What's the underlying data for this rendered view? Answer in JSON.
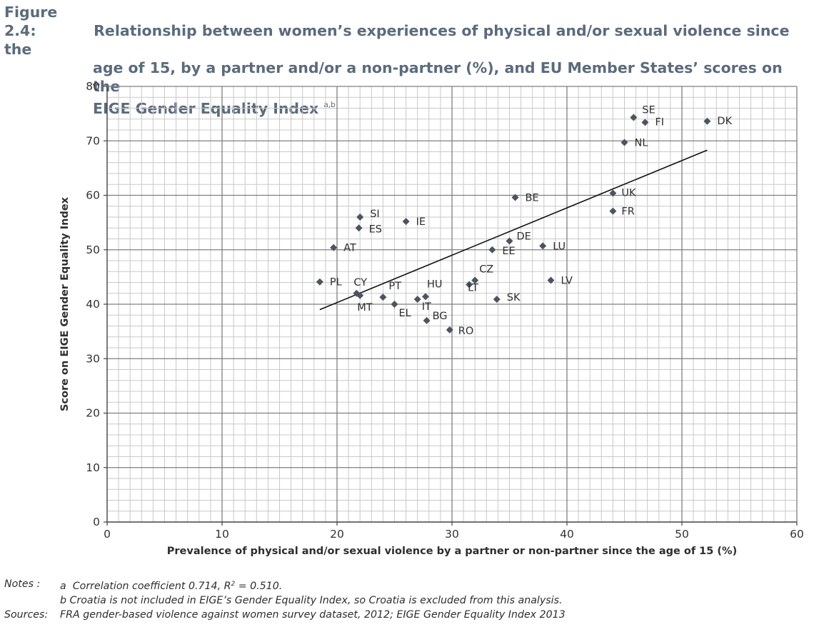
{
  "figure": {
    "label": "Figure 2.4:",
    "title_lines": [
      "Relationship between women’s experiences of physical and/or sexual violence since the",
      "age of 15, by a partner and/or a non-partner (%), and EU Member States’ scores on the",
      "EIGE Gender Equality Index"
    ],
    "title_superscript": "a,b"
  },
  "chart_data": {
    "type": "scatter",
    "title": "",
    "xlabel": "Prevalence of physical and/or sexual violence by a partner or non-partner since the age of 15 (%)",
    "ylabel": "Score on EIGE Gender Equality Index",
    "xlim": [
      0,
      60
    ],
    "ylim": [
      0,
      80
    ],
    "x_ticks": [
      0,
      10,
      20,
      30,
      40,
      50,
      60
    ],
    "y_ticks": [
      0,
      10,
      20,
      30,
      40,
      50,
      60,
      70,
      80
    ],
    "minor_grid": true,
    "major_grid": true,
    "marker_color": "#4a5561",
    "points": [
      {
        "label": "SE",
        "x": 45.8,
        "y": 74.3
      },
      {
        "label": "FI",
        "x": 46.8,
        "y": 73.4
      },
      {
        "label": "DK",
        "x": 52.2,
        "y": 73.6
      },
      {
        "label": "NL",
        "x": 45.0,
        "y": 69.7
      },
      {
        "label": "UK",
        "x": 44.0,
        "y": 60.4
      },
      {
        "label": "FR",
        "x": 44.0,
        "y": 57.1
      },
      {
        "label": "BE",
        "x": 35.5,
        "y": 59.6
      },
      {
        "label": "LU",
        "x": 37.9,
        "y": 50.7
      },
      {
        "label": "DE",
        "x": 35.0,
        "y": 51.6
      },
      {
        "label": "EE",
        "x": 33.5,
        "y": 50.0
      },
      {
        "label": "LV",
        "x": 38.6,
        "y": 44.4
      },
      {
        "label": "SK",
        "x": 33.9,
        "y": 40.9
      },
      {
        "label": "CZ",
        "x": 32.0,
        "y": 44.4
      },
      {
        "label": "LT",
        "x": 31.5,
        "y": 43.6
      },
      {
        "label": "RO",
        "x": 29.8,
        "y": 35.3
      },
      {
        "label": "BG",
        "x": 27.8,
        "y": 37.0
      },
      {
        "label": "HU",
        "x": 27.7,
        "y": 41.4
      },
      {
        "label": "IT",
        "x": 27.0,
        "y": 40.9
      },
      {
        "label": "EL",
        "x": 25.0,
        "y": 40.0
      },
      {
        "label": "PT",
        "x": 24.0,
        "y": 41.3
      },
      {
        "label": "IE",
        "x": 26.0,
        "y": 55.2
      },
      {
        "label": "SI",
        "x": 22.0,
        "y": 56.0
      },
      {
        "label": "ES",
        "x": 21.9,
        "y": 54.0
      },
      {
        "label": "AT",
        "x": 19.7,
        "y": 50.4
      },
      {
        "label": "PL",
        "x": 18.5,
        "y": 44.1
      },
      {
        "label": "CY",
        "x": 21.7,
        "y": 42.0
      },
      {
        "label": "MT",
        "x": 22.0,
        "y": 41.6
      }
    ],
    "trendline": {
      "x": [
        18.5,
        52.2
      ],
      "y": [
        39.0,
        68.3
      ]
    }
  },
  "notes": {
    "label": "Notes :",
    "a_prefix": "a",
    "a_text_1": "Correlation coefficient 0.714, R",
    "a_sup": "2",
    "a_text_2": " = 0.510.",
    "b_text": "b  Croatia is not included in EIGE’s Gender Equality Index, so Croatia is excluded from this analysis."
  },
  "sources": {
    "label": "Sources:",
    "text": "FRA gender-based violence against women survey dataset, 2012; EIGE Gender Equality Index 2013"
  }
}
